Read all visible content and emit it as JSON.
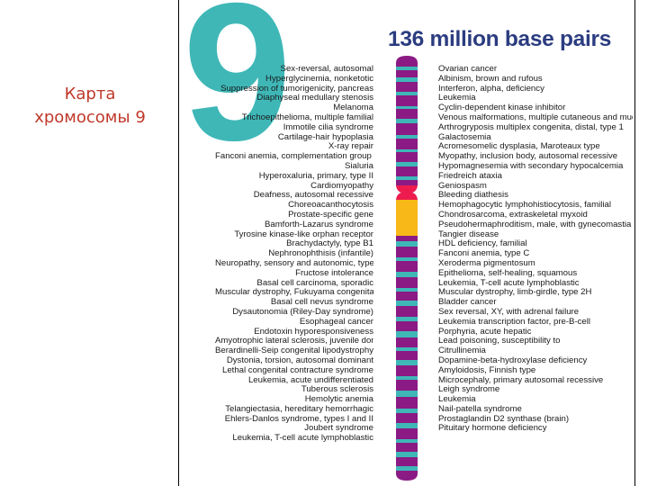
{
  "slide": {
    "title_line1": "Карта",
    "title_line2": "хромосомы 9"
  },
  "figure": {
    "big_number": "9",
    "header": "136 million base pairs",
    "colors": {
      "number": "#3fb7b7",
      "header": "#2b3c80",
      "chromosome_purple": "#8b1a84",
      "chromosome_teal": "#3fb7b7",
      "centromere": "#ee1c4e",
      "heterochromatin": "#f7b818",
      "title_red": "#c0392b"
    },
    "left_genes": [
      "Sex-reversal, autosomal",
      "Hyperglycinemia, nonketotic",
      "Suppression of tumorigenicity, pancreas",
      "Diaphyseal medullary stenosis",
      "Melanoma",
      "Trichoepithelioma, multiple familial",
      "Immotile cilia syndrome",
      "Cartilage-hair hypoplasia",
      "X-ray repair",
      "Fanconi anemia, complementation group G",
      "Sialuria",
      "Hyperoxaluria, primary, type II",
      "Cardiomyopathy",
      "Deafness, autosomal recessive",
      "Choreoacanthocytosis",
      "Prostate-specific gene",
      "Bamforth-Lazarus syndrome",
      "Tyrosine kinase-like orphan receptor",
      "Brachydactyly, type B1",
      "Nephronophthisis (infantile)",
      "Neuropathy, sensory and autonomic, type 1",
      "Fructose intolerance",
      "Basal cell carcinoma, sporadic",
      "Muscular dystrophy, Fukuyama congenital",
      "Basal cell nevus syndrome",
      "Dysautonomia (Riley-Day syndrome)",
      "Esophageal cancer",
      "Endotoxin hyporesponsiveness",
      "Amyotrophic lateral sclerosis, juvenile dominant",
      "Berardinelli-Seip congenital lipodystrophy",
      "Dystonia, torsion, autosomal dominant",
      "Lethal congenital contracture syndrome",
      "Leukemia, acute undifferentiated",
      "Tuberous sclerosis",
      "Hemolytic anemia",
      "Telangiectasia, hereditary hemorrhagic",
      "Ehlers-Danlos syndrome, types I and II",
      "Joubert syndrome",
      "Leukemia, T-cell acute lymphoblastic"
    ],
    "right_genes": [
      "Ovarian cancer",
      "Albinism, brown and rufous",
      "Interferon, alpha, deficiency",
      "Leukemia",
      "Cyclin-dependent kinase inhibitor",
      "Venous malformations, multiple cutaneous and mucosal",
      "Arthrogryposis multiplex congenita, distal, type 1",
      "Galactosemia",
      "Acromesomelic dysplasia, Maroteaux type",
      "Myopathy, inclusion body, autosomal recessive",
      "Hypomagnesemia with secondary hypocalcemia",
      "Friedreich ataxia",
      "Geniospasm",
      "Bleeding diathesis",
      "Hemophagocytic lymphohistiocytosis, familial",
      "Chondrosarcoma, extraskeletal myxoid",
      "Pseudohermaphroditism, male, with gynecomastia",
      "Tangier disease",
      "HDL deficiency, familial",
      "Fanconi anemia, type C",
      "Xeroderma pigmentosum",
      "Epithelioma, self-healing, squamous",
      "Leukemia, T-cell acute lymphoblastic",
      "Muscular dystrophy, limb-girdle, type 2H",
      "Bladder cancer",
      "Sex reversal, XY, with adrenal failure",
      "Leukemia transcription factor, pre-B-cell",
      "Porphyria, acute hepatic",
      "Lead poisoning, susceptibility to",
      "Citrullinemia",
      "Dopamine-beta-hydroxylase deficiency",
      "Amyloidosis, Finnish type",
      "Microcephaly, primary autosomal recessive",
      "Leigh syndrome",
      "Leukemia",
      "Nail-patella syndrome",
      "Prostaglandin D2 synthase (brain)",
      "Pituitary hormone deficiency"
    ]
  }
}
